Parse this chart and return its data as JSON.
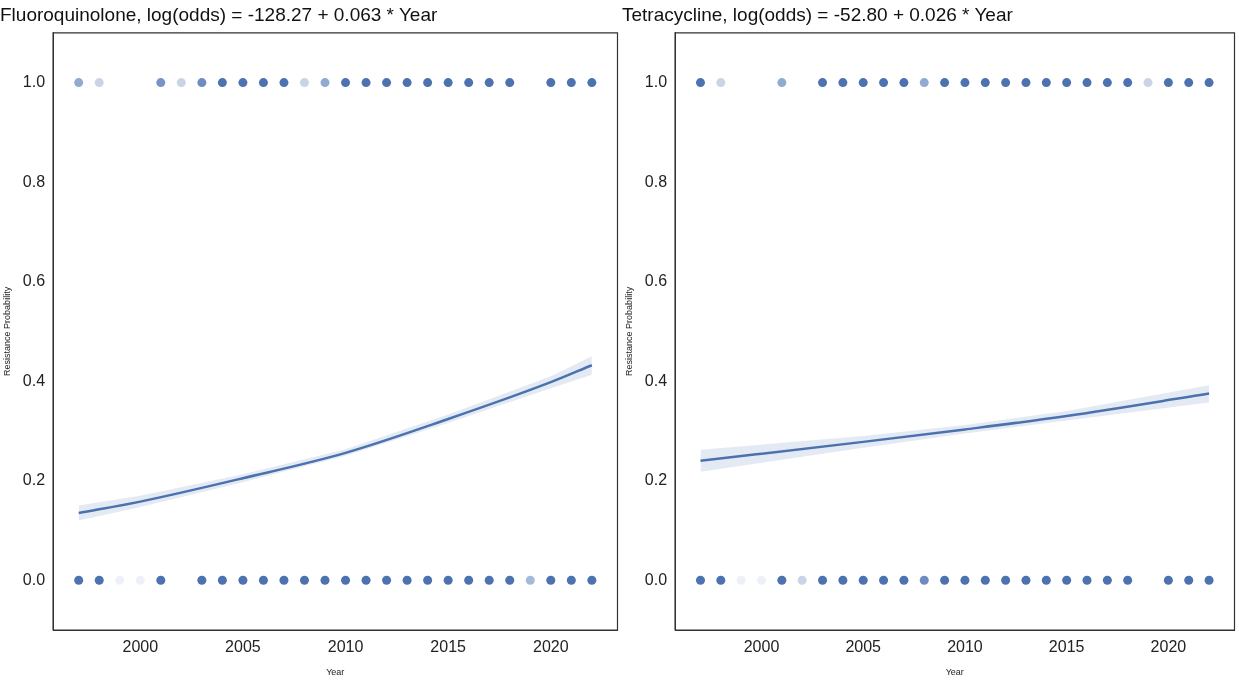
{
  "chart_data": [
    {
      "type": "scatter",
      "title": "Fluoroquinolone, log(odds) = -128.27 + 0.063 * Year",
      "xlabel": "Year",
      "ylabel": "Resistance Probability",
      "xlim": [
        1995.75,
        2023.25
      ],
      "ylim": [
        -0.1,
        1.1
      ],
      "xticks": [
        2000,
        2005,
        2010,
        2015,
        2020
      ],
      "yticks": [
        {
          "value": 0,
          "label": "0.0"
        },
        {
          "value": 0.2,
          "label": "0.2"
        },
        {
          "value": 0.4,
          "label": "0.4"
        },
        {
          "value": 0.6,
          "label": "0.6"
        },
        {
          "value": 0.8,
          "label": "0.8"
        },
        {
          "value": 1,
          "label": "1.0"
        }
      ],
      "grid": false,
      "legend": false,
      "series": [
        {
          "type": "scatter",
          "marker": "circle",
          "x": [
            1997,
            1998,
            2001,
            2002,
            2003,
            2004,
            2005,
            2006,
            2007,
            2008,
            2009,
            2010,
            2011,
            2012,
            2013,
            2014,
            2015,
            2016,
            2017,
            2018,
            2020,
            2021,
            2022
          ],
          "values": [
            1,
            1,
            1,
            1,
            1,
            1,
            1,
            1,
            1,
            1,
            1,
            1,
            1,
            1,
            1,
            1,
            1,
            1,
            1,
            1,
            1,
            1,
            1
          ],
          "colors": [
            "#90aad0",
            "#c9d5e7",
            "#7894c4",
            "#c9d5e7",
            "#6f8cc0",
            "#4c72b0",
            "#4c72b0",
            "#4c72b0",
            "#4c72b0",
            "#c9d5e7",
            "#90aad0",
            "#4c72b0",
            "#4c72b0",
            "#4c72b0",
            "#4c72b0",
            "#4c72b0",
            "#4c72b0",
            "#4c72b0",
            "#4c72b0",
            "#4c72b0",
            "#4c72b0",
            "#4c72b0",
            "#4c72b0"
          ]
        },
        {
          "type": "scatter",
          "marker": "circle",
          "x": [
            1997,
            1998,
            1999,
            2000,
            2001,
            2003,
            2004,
            2005,
            2006,
            2007,
            2008,
            2009,
            2010,
            2011,
            2012,
            2013,
            2014,
            2015,
            2016,
            2017,
            2018,
            2019,
            2020,
            2021,
            2022
          ],
          "values": [
            0,
            0,
            0,
            0,
            0,
            0,
            0,
            0,
            0,
            0,
            0,
            0,
            0,
            0,
            0,
            0,
            0,
            0,
            0,
            0,
            0,
            0,
            0,
            0,
            0
          ],
          "colors": [
            "#4c72b0",
            "#4c72b0",
            "#edf1f7",
            "#edf1f7",
            "#4c72b0",
            "#4c72b0",
            "#4c72b0",
            "#4c72b0",
            "#4c72b0",
            "#4c72b0",
            "#4c72b0",
            "#4c72b0",
            "#4c72b0",
            "#4c72b0",
            "#4c72b0",
            "#4c72b0",
            "#4c72b0",
            "#4c72b0",
            "#4c72b0",
            "#4c72b0",
            "#4c72b0",
            "#a5bad9",
            "#4c72b0",
            "#4c72b0",
            "#4c72b0"
          ]
        },
        {
          "type": "line",
          "marker": "none",
          "color": "#4c72b0",
          "x": [
            1997,
            2000,
            2005,
            2010,
            2015,
            2020,
            2022
          ],
          "values": [
            0.135,
            0.158,
            0.205,
            0.256,
            0.324,
            0.398,
            0.432
          ],
          "lower": [
            0.12,
            0.147,
            0.197,
            0.25,
            0.316,
            0.386,
            0.413
          ],
          "upper": [
            0.15,
            0.17,
            0.213,
            0.263,
            0.333,
            0.41,
            0.45
          ]
        }
      ]
    },
    {
      "type": "scatter",
      "title": "Tetracycline, log(odds) = -52.80 + 0.026 * Year",
      "xlabel": "Year",
      "ylabel": "Resistance Probability",
      "xlim": [
        1995.75,
        2023.25
      ],
      "ylim": [
        -0.1,
        1.1
      ],
      "xticks": [
        2000,
        2005,
        2010,
        2015,
        2020
      ],
      "yticks": [
        {
          "value": 0,
          "label": "0.0"
        },
        {
          "value": 0.2,
          "label": "0.2"
        },
        {
          "value": 0.4,
          "label": "0.4"
        },
        {
          "value": 0.6,
          "label": "0.6"
        },
        {
          "value": 0.8,
          "label": "0.8"
        },
        {
          "value": 1,
          "label": "1.0"
        }
      ],
      "grid": false,
      "legend": false,
      "series": [
        {
          "type": "scatter",
          "marker": "circle",
          "x": [
            1997,
            1998,
            2001,
            2003,
            2004,
            2005,
            2006,
            2007,
            2008,
            2009,
            2010,
            2011,
            2012,
            2013,
            2014,
            2015,
            2016,
            2017,
            2018,
            2019,
            2020,
            2021,
            2022
          ],
          "values": [
            1,
            1,
            1,
            1,
            1,
            1,
            1,
            1,
            1,
            1,
            1,
            1,
            1,
            1,
            1,
            1,
            1,
            1,
            1,
            1,
            1,
            1,
            1
          ],
          "colors": [
            "#4c72b0",
            "#c9d5e7",
            "#90aad0",
            "#4c72b0",
            "#4c72b0",
            "#4c72b0",
            "#4c72b0",
            "#4c72b0",
            "#90aad0",
            "#4c72b0",
            "#4c72b0",
            "#4c72b0",
            "#4c72b0",
            "#4c72b0",
            "#4c72b0",
            "#4c72b0",
            "#4c72b0",
            "#4c72b0",
            "#4c72b0",
            "#c9d5e7",
            "#4c72b0",
            "#4c72b0",
            "#4c72b0"
          ]
        },
        {
          "type": "scatter",
          "marker": "circle",
          "x": [
            1997,
            1998,
            1999,
            2000,
            2001,
            2002,
            2003,
            2004,
            2005,
            2006,
            2007,
            2008,
            2009,
            2010,
            2011,
            2012,
            2013,
            2014,
            2015,
            2016,
            2017,
            2018,
            2020,
            2021,
            2022
          ],
          "values": [
            0,
            0,
            0,
            0,
            0,
            0,
            0,
            0,
            0,
            0,
            0,
            0,
            0,
            0,
            0,
            0,
            0,
            0,
            0,
            0,
            0,
            0,
            0,
            0,
            0
          ],
          "colors": [
            "#4c72b0",
            "#4c72b0",
            "#edf1f7",
            "#edf1f7",
            "#4c72b0",
            "#c9d5e7",
            "#4c72b0",
            "#4c72b0",
            "#4c72b0",
            "#4c72b0",
            "#4c72b0",
            "#6f8cc0",
            "#4c72b0",
            "#4c72b0",
            "#4c72b0",
            "#4c72b0",
            "#4c72b0",
            "#4c72b0",
            "#4c72b0",
            "#4c72b0",
            "#4c72b0",
            "#4c72b0",
            "#4c72b0",
            "#4c72b0",
            "#4c72b0"
          ]
        },
        {
          "type": "line",
          "marker": "none",
          "color": "#4c72b0",
          "x": [
            1997,
            2005,
            2010,
            2015,
            2022
          ],
          "values": [
            0.24,
            0.278,
            0.303,
            0.33,
            0.375
          ],
          "lower": [
            0.218,
            0.266,
            0.295,
            0.321,
            0.357
          ],
          "upper": [
            0.262,
            0.29,
            0.312,
            0.34,
            0.392
          ]
        }
      ]
    }
  ]
}
